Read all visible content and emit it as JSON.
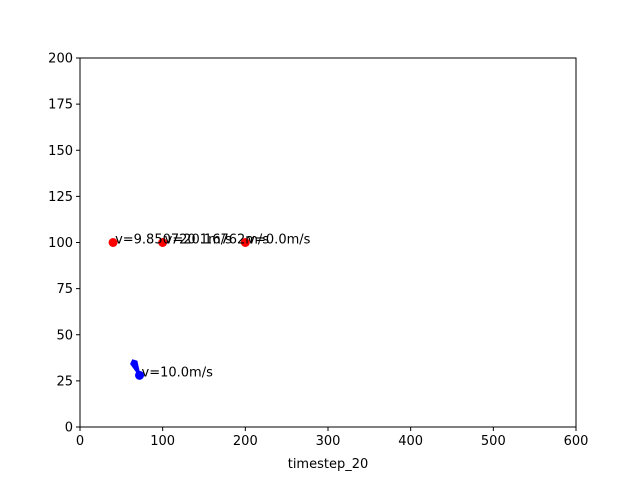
{
  "chart_data": {
    "type": "scatter",
    "title": "",
    "xlabel": "timestep_20",
    "ylabel": "",
    "xlim": [
      0,
      600
    ],
    "ylim": [
      0,
      200
    ],
    "xticks": [
      0,
      100,
      200,
      300,
      400,
      500,
      600
    ],
    "yticks": [
      0,
      25,
      50,
      75,
      100,
      125,
      150,
      175,
      200
    ],
    "grid": false,
    "series": [
      {
        "color": "#ff0000",
        "marker": "circle",
        "points": [
          {
            "x": 40,
            "y": 100,
            "label": "v=9.850720 1m/s"
          },
          {
            "x": 100,
            "y": 100,
            "label": "v=20.16762m/s"
          },
          {
            "x": 200,
            "y": 100,
            "label": "v=0.0m/s"
          }
        ]
      },
      {
        "color": "#0000ff",
        "marker": "circle",
        "points": [
          {
            "x": 72,
            "y": 28,
            "label": "v=10.0m/s"
          }
        ]
      }
    ],
    "annotations": [
      {
        "type": "arrow",
        "color": "#0000ff",
        "x": 72,
        "y": 28,
        "dx": -7,
        "dy": 7
      }
    ]
  }
}
